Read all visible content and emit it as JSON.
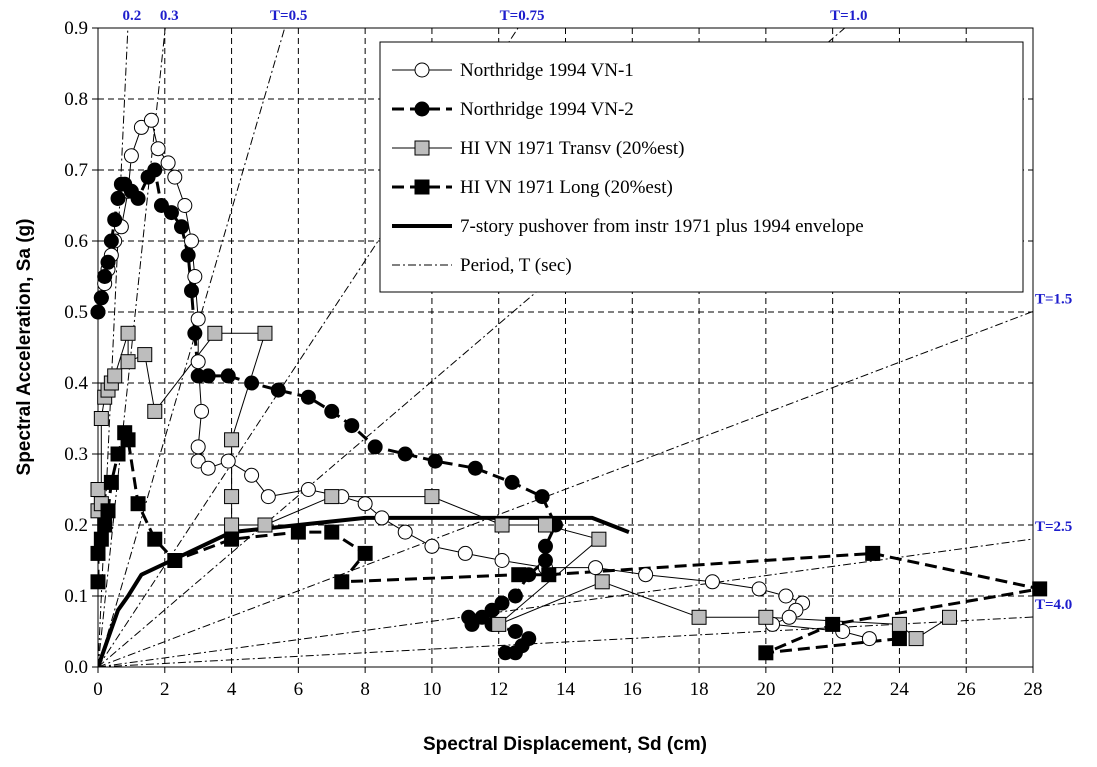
{
  "chart_data": {
    "type": "scatter",
    "xlabel": "Spectral Displacement, Sd (cm)",
    "ylabel": "Spectral Acceleration, Sa (g)",
    "xlim": [
      0,
      28
    ],
    "ylim": [
      0,
      0.9
    ],
    "grid": true,
    "legend_position": "top-right",
    "x_ticks": [
      "0",
      "2",
      "4",
      "6",
      "8",
      "10",
      "12",
      "14",
      "16",
      "18",
      "20",
      "22",
      "24",
      "26",
      "28"
    ],
    "y_ticks": [
      "0.0",
      "0.1",
      "0.2",
      "0.3",
      "0.4",
      "0.5",
      "0.6",
      "0.7",
      "0.8",
      "0.9"
    ],
    "series": [
      {
        "name": "Northridge 1994 VN-1",
        "marker": "open-circle",
        "line": "thin-solid",
        "color": "#000000",
        "x": [
          0.0,
          0.1,
          0.2,
          0.3,
          0.4,
          0.5,
          0.7,
          0.9,
          1.0,
          1.3,
          1.6,
          1.8,
          2.1,
          2.3,
          2.6,
          2.8,
          2.9,
          3.0,
          3.0,
          3.1,
          3.0,
          3.0,
          3.3,
          3.9,
          4.6,
          5.1,
          6.3,
          7.3,
          8.0,
          8.5,
          9.2,
          10.0,
          11.0,
          12.1,
          13.4,
          14.9,
          16.4,
          18.4,
          19.8,
          20.6,
          21.1,
          20.9,
          20.7,
          20.2,
          22.3,
          23.1
        ],
        "y": [
          0.5,
          0.52,
          0.54,
          0.56,
          0.58,
          0.6,
          0.62,
          0.67,
          0.72,
          0.76,
          0.77,
          0.73,
          0.71,
          0.69,
          0.65,
          0.6,
          0.55,
          0.49,
          0.43,
          0.36,
          0.31,
          0.29,
          0.28,
          0.29,
          0.27,
          0.24,
          0.25,
          0.24,
          0.23,
          0.21,
          0.19,
          0.17,
          0.16,
          0.15,
          0.14,
          0.14,
          0.13,
          0.12,
          0.11,
          0.1,
          0.09,
          0.08,
          0.07,
          0.06,
          0.05,
          0.04
        ]
      },
      {
        "name": "Northridge 1994 VN-2",
        "marker": "filled-circle",
        "line": "thick-dashed",
        "color": "#000000",
        "x": [
          0.0,
          0.1,
          0.2,
          0.3,
          0.4,
          0.5,
          0.6,
          0.7,
          0.8,
          1.0,
          1.2,
          1.5,
          1.7,
          1.9,
          2.2,
          2.5,
          2.7,
          2.8,
          2.9,
          3.0,
          3.3,
          3.9,
          4.6,
          5.4,
          6.3,
          7.0,
          7.6,
          8.3,
          9.2,
          10.1,
          11.3,
          12.4,
          13.3,
          13.7,
          13.4,
          13.4,
          12.9,
          12.5,
          12.1,
          11.8,
          11.5,
          11.2,
          11.1,
          11.8,
          12.5,
          12.9,
          12.7,
          12.5,
          12.2
        ],
        "y": [
          0.5,
          0.52,
          0.55,
          0.57,
          0.6,
          0.63,
          0.66,
          0.68,
          0.68,
          0.67,
          0.66,
          0.69,
          0.7,
          0.65,
          0.64,
          0.62,
          0.58,
          0.53,
          0.47,
          0.41,
          0.41,
          0.41,
          0.4,
          0.39,
          0.38,
          0.36,
          0.34,
          0.31,
          0.3,
          0.29,
          0.28,
          0.26,
          0.24,
          0.2,
          0.17,
          0.15,
          0.13,
          0.1,
          0.09,
          0.08,
          0.07,
          0.06,
          0.07,
          0.06,
          0.05,
          0.04,
          0.03,
          0.02,
          0.02
        ]
      },
      {
        "name": "HI VN 1971 Transv (20%est)",
        "marker": "gray-square",
        "line": "thin-solid",
        "color": "#000000",
        "x": [
          0.0,
          0.0,
          0.1,
          0.1,
          0.2,
          0.3,
          0.4,
          0.5,
          0.9,
          0.9,
          1.4,
          1.7,
          3.5,
          5.0,
          4.0,
          4.0,
          4.0,
          5.0,
          7.0,
          10.0,
          12.1,
          13.4,
          15.0,
          12.0,
          15.1,
          18.0,
          20.0,
          24.0,
          24.5,
          25.5
        ],
        "y": [
          0.22,
          0.25,
          0.23,
          0.35,
          0.38,
          0.39,
          0.4,
          0.41,
          0.47,
          0.43,
          0.44,
          0.36,
          0.47,
          0.47,
          0.32,
          0.24,
          0.2,
          0.2,
          0.24,
          0.24,
          0.2,
          0.2,
          0.18,
          0.06,
          0.12,
          0.07,
          0.07,
          0.06,
          0.04,
          0.07
        ]
      },
      {
        "name": "HI VN 1971 Long (20%est)",
        "marker": "filled-square",
        "line": "thick-dashed",
        "color": "#000000",
        "x": [
          0.0,
          0.0,
          0.1,
          0.2,
          0.3,
          0.4,
          0.6,
          0.8,
          0.9,
          1.2,
          1.7,
          2.3,
          4.0,
          6.0,
          7.0,
          8.0,
          7.3,
          12.6,
          13.5,
          23.2,
          28.2,
          22.0,
          20.0,
          24.0
        ],
        "y": [
          0.12,
          0.16,
          0.18,
          0.2,
          0.22,
          0.26,
          0.3,
          0.33,
          0.32,
          0.23,
          0.18,
          0.15,
          0.18,
          0.19,
          0.19,
          0.16,
          0.12,
          0.13,
          0.13,
          0.16,
          0.11,
          0.06,
          0.02,
          0.04
        ]
      },
      {
        "name": "7-story pushover from instr 1971 plus 1994 envelope",
        "marker": "none",
        "line": "thick-solid",
        "color": "#000000",
        "x": [
          0.0,
          0.3,
          0.6,
          0.9,
          1.3,
          2.2,
          4.0,
          6.0,
          8.0,
          10.0,
          12.0,
          14.0,
          14.8,
          15.9
        ],
        "y": [
          0.0,
          0.04,
          0.08,
          0.1,
          0.13,
          0.15,
          0.19,
          0.2,
          0.21,
          0.21,
          0.21,
          0.21,
          0.21,
          0.19
        ]
      },
      {
        "name": "Period, T (sec)",
        "marker": "none",
        "line": "dash-dot",
        "color": "#000000",
        "periods": [
          0.2,
          0.3,
          0.5,
          0.75,
          1.0,
          1.5,
          2.5,
          4.0
        ]
      }
    ],
    "annotations": [
      "0.2",
      "0.3",
      "T=0.5",
      "T=0.75",
      "T=1.0",
      "T=1.5",
      "T=2.5",
      "T=4.0"
    ]
  }
}
